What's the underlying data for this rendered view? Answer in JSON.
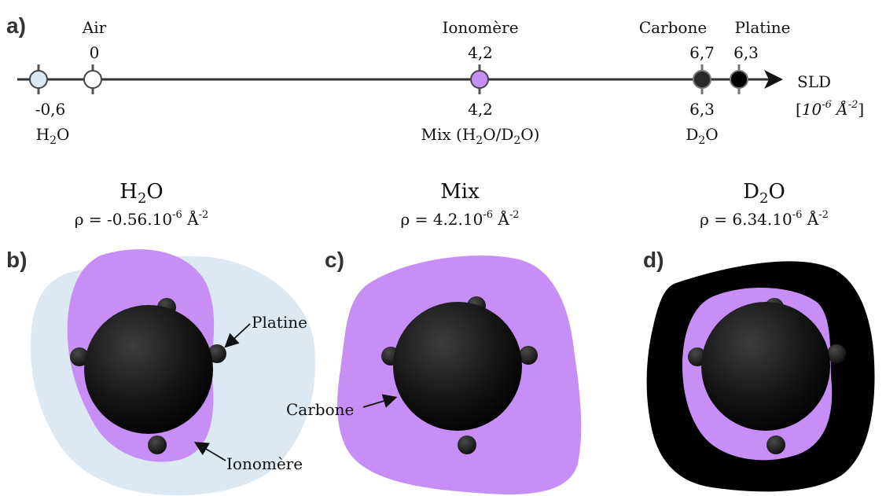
{
  "panels": {
    "a": "a)",
    "b": "b)",
    "c": "c)",
    "d": "d)"
  },
  "axis": {
    "label": "SLD",
    "unit_base": "[",
    "unit_exp_val": "10",
    "unit_exp_pow": "-6",
    "unit_angstrom": " Å",
    "unit_pow": "-2",
    "unit_close": "]"
  },
  "points": {
    "water": {
      "value": "-0,6",
      "name_a": "H",
      "name_sub": "2",
      "name_b": "O",
      "color": "#dce8f2"
    },
    "air": {
      "value": "0",
      "name": "Air",
      "color": "#ffffff"
    },
    "ionomer": {
      "value": "4,2",
      "name": "Ionomère",
      "color": "#c78ef5"
    },
    "mix": {
      "value": "4,2",
      "name_a": "Mix (H",
      "name_sub1": "2",
      "name_b": "O/D",
      "name_sub2": "2",
      "name_c": "O)"
    },
    "carbon": {
      "value": "6,7",
      "name": "Carbone",
      "color": "#2a2a2a"
    },
    "d2o": {
      "value": "6,3",
      "name_a": "D",
      "name_sub": "2",
      "name_b": "O"
    },
    "platinum": {
      "value": "6,3",
      "name": "Platine",
      "color": "#000000"
    }
  },
  "columns": {
    "h2o": {
      "title_a": "H",
      "title_sub": "2",
      "title_b": "O",
      "rho_a": "ρ = ",
      "rho_b": "-0.56.10",
      "rho_exp": "-6",
      "rho_c": " Å",
      "rho_exp2": "-2"
    },
    "mix": {
      "title": "Mix",
      "rho_a": "ρ = ",
      "rho_b": "4.2.10",
      "rho_exp": "-6",
      "rho_c": " Å",
      "rho_exp2": "-2"
    },
    "d2o": {
      "title_a": "D",
      "title_sub": "2",
      "title_b": "O",
      "rho_a": "ρ = ",
      "rho_b": "6.34.10",
      "rho_exp": "-6",
      "rho_c": " Å",
      "rho_exp2": "-2"
    }
  },
  "callouts": {
    "platinum": "Platine",
    "carbon": "Carbone",
    "ionomer": "Ionomère"
  },
  "colors": {
    "h2o": "#dce8f2",
    "ionomer": "#c78ef5",
    "d2o": "#000000"
  }
}
